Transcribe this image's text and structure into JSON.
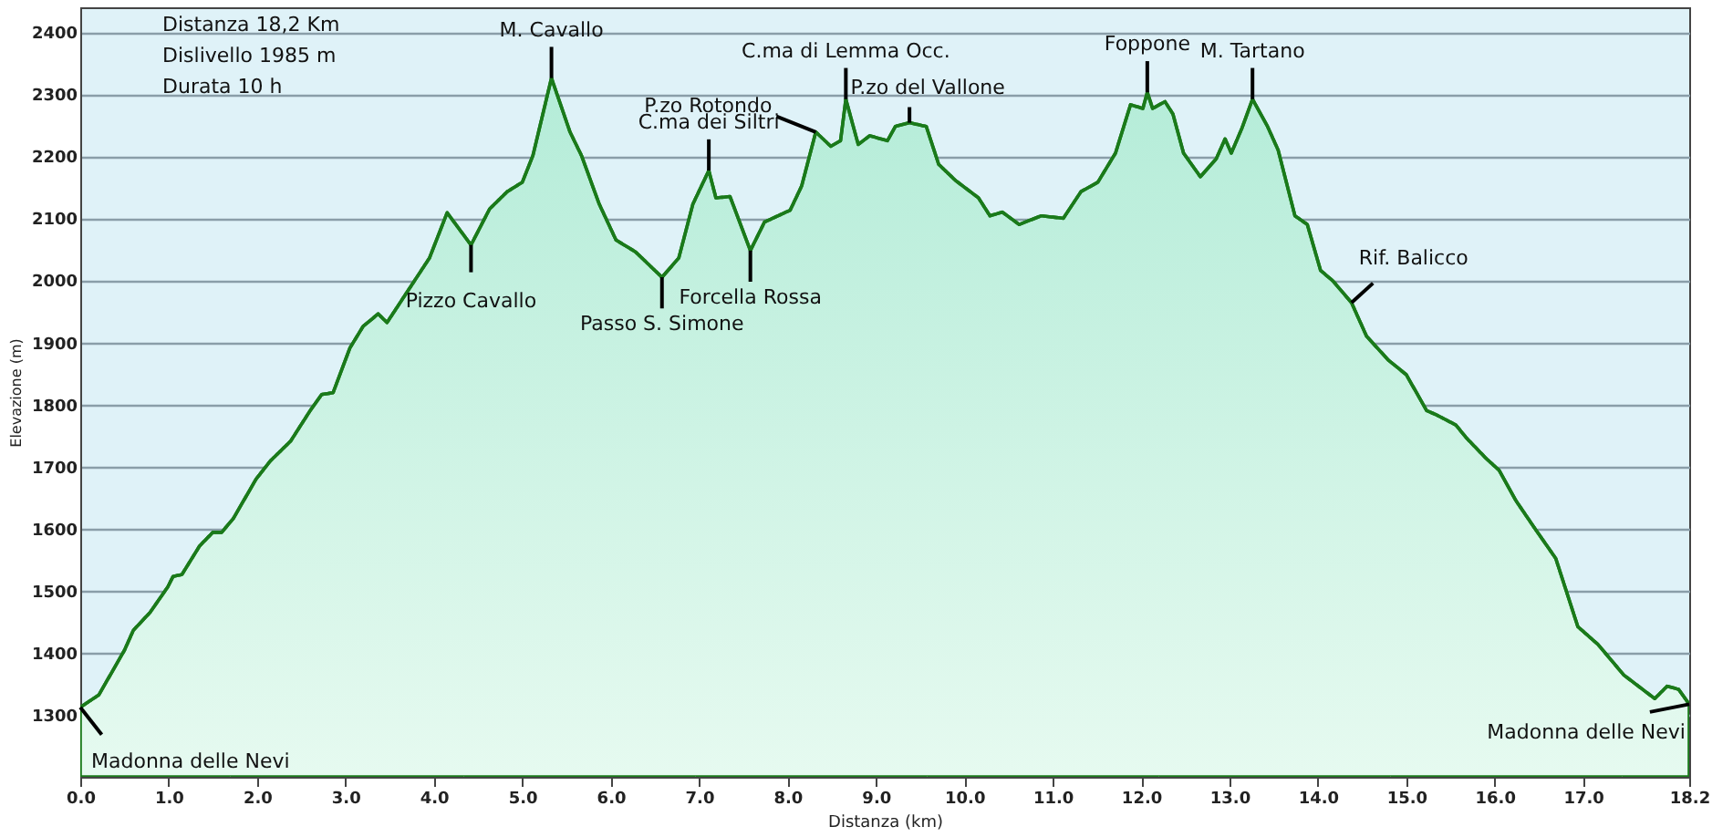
{
  "chart_data": {
    "type": "area",
    "xlabel": "Distanza  (km)",
    "ylabel": "Elevazione (m)",
    "x": [
      0,
      0.21,
      0.5,
      0.6,
      0.79,
      0.99,
      1.05,
      1.15,
      1.35,
      1.5,
      1.6,
      1.73,
      1.99,
      2.15,
      2.38,
      2.6,
      2.73,
      2.86,
      3.05,
      3.2,
      3.37,
      3.47,
      3.95,
      4.15,
      4.42,
      4.63,
      4.83,
      5.0,
      5.12,
      5.33,
      5.54,
      5.67,
      5.87,
      6.06,
      6.28,
      6.58,
      6.77,
      6.93,
      7.11,
      7.19,
      7.35,
      7.58,
      7.74,
      8.03,
      8.16,
      8.32,
      8.49,
      8.6,
      8.66,
      8.8,
      8.93,
      9.13,
      9.22,
      9.38,
      9.57,
      9.71,
      9.9,
      10.16,
      10.29,
      10.43,
      10.62,
      10.87,
      11.12,
      11.32,
      11.51,
      11.71,
      11.88,
      12.02,
      12.07,
      12.13,
      12.27,
      12.36,
      12.48,
      12.67,
      12.85,
      12.95,
      13.02,
      13.14,
      13.26,
      13.43,
      13.55,
      13.74,
      13.88,
      14.03,
      14.17,
      14.38,
      14.55,
      14.8,
      15.0,
      15.23,
      15.33,
      15.56,
      15.68,
      15.91,
      16.05,
      16.24,
      16.45,
      16.69,
      16.94,
      17.17,
      17.46,
      17.81,
      17.95,
      18.08,
      18.2
    ],
    "series": [
      {
        "color": "#1a7a1a",
        "values": [
          1312,
          1332,
          1404,
          1436,
          1465,
          1506,
          1523,
          1526,
          1572,
          1594,
          1594,
          1616,
          1680,
          1709,
          1741,
          1790,
          1816,
          1819,
          1891,
          1926,
          1946,
          1932,
          2036,
          2109,
          2057,
          2115,
          2143,
          2158,
          2201,
          2326,
          2239,
          2201,
          2123,
          2065,
          2046,
          2005,
          2036,
          2123,
          2177,
          2133,
          2135,
          2048,
          2094,
          2113,
          2152,
          2239,
          2216,
          2225,
          2292,
          2219,
          2233,
          2225,
          2248,
          2254,
          2248,
          2187,
          2161,
          2133,
          2104,
          2110,
          2090,
          2104,
          2100,
          2143,
          2158,
          2205,
          2283,
          2277,
          2303,
          2277,
          2288,
          2268,
          2205,
          2167,
          2196,
          2228,
          2205,
          2245,
          2292,
          2248,
          2210,
          2104,
          2090,
          2016,
          1999,
          1964,
          1910,
          1871,
          1848,
          1790,
          1784,
          1767,
          1746,
          1712,
          1694,
          1645,
          1601,
          1552,
          1442,
          1413,
          1364,
          1326,
          1346,
          1341,
          1317
        ]
      }
    ],
    "xlim": [
      0,
      18.2
    ],
    "ylim": [
      1200,
      2440
    ],
    "xticks": [
      {
        "value": 0,
        "label": "0.0"
      },
      {
        "value": 1,
        "label": "1.0"
      },
      {
        "value": 2,
        "label": "2.0"
      },
      {
        "value": 3,
        "label": "3.0"
      },
      {
        "value": 4,
        "label": "4.0"
      },
      {
        "value": 5,
        "label": "5.0"
      },
      {
        "value": 6,
        "label": "6.0"
      },
      {
        "value": 7,
        "label": "7.0"
      },
      {
        "value": 8,
        "label": "8.0"
      },
      {
        "value": 9,
        "label": "9.0"
      },
      {
        "value": 10,
        "label": "10.0"
      },
      {
        "value": 11,
        "label": "11.0"
      },
      {
        "value": 12,
        "label": "12.0"
      },
      {
        "value": 13,
        "label": "13.0"
      },
      {
        "value": 14,
        "label": "14.0"
      },
      {
        "value": 15,
        "label": "15.0"
      },
      {
        "value": 16,
        "label": "16.0"
      },
      {
        "value": 17,
        "label": "17.0"
      },
      18.2
    ],
    "yticks": [
      1300,
      1400,
      1500,
      1600,
      1700,
      1800,
      1900,
      2000,
      2100,
      2200,
      2300,
      2400
    ],
    "grid": "y",
    "line_style": "solid",
    "annotations": [
      "Distanza    18,2 Km",
      "Dislivello    1985 m",
      "Durata         10 h",
      {
        "text": "Madonna delle Nevi",
        "x": 0,
        "y": 1312
      },
      {
        "text": "Pizzo Cavallo",
        "x": 4.42,
        "y": 2057
      },
      {
        "text": "M. Cavallo",
        "x": 5.33,
        "y": 2326
      },
      {
        "text": "Passo S. Simone",
        "x": 6.58,
        "y": 2005
      },
      {
        "text": "C.ma dei Siltri",
        "x": 7.11,
        "y": 2177
      },
      {
        "text": "Forcella Rossa",
        "x": 7.58,
        "y": 2048
      },
      {
        "text": "P.zo Rotondo",
        "x": 8.32,
        "y": 2239
      },
      {
        "text": "C.ma di Lemma Occ.",
        "x": 8.66,
        "y": 2292
      },
      {
        "text": "P.zo del Vallone",
        "x": 9.38,
        "y": 2254
      },
      {
        "text": "Foppone",
        "x": 12.07,
        "y": 2303
      },
      {
        "text": "M. Tartano",
        "x": 13.26,
        "y": 2292
      },
      {
        "text": "Rif. Balicco",
        "x": 14.38,
        "y": 1964
      },
      {
        "text": "Madonna delle Nevi",
        "x": 18.2,
        "y": 1317
      }
    ]
  }
}
